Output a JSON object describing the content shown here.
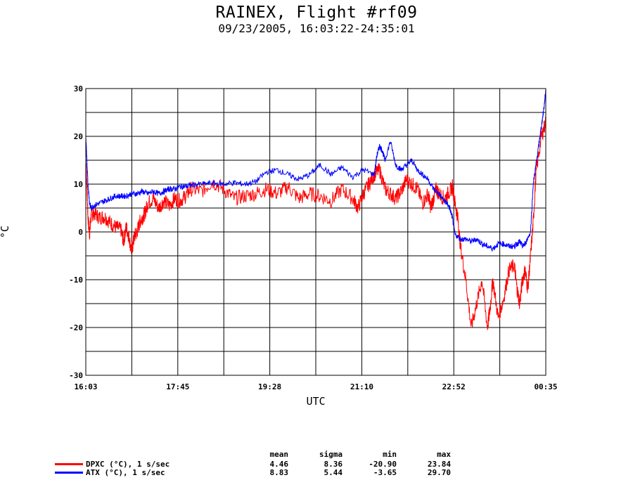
{
  "chart_data": {
    "type": "line",
    "title": "RAINEX, Flight #rf09",
    "subtitle": "09/23/2005, 16:03:22-24:35:01",
    "xlabel": "UTC",
    "ylabel": "°C",
    "x_tick_labels": [
      "16:03",
      "17:45",
      "19:28",
      "21:10",
      "22:52",
      "00:35"
    ],
    "y_ticks": [
      -30,
      -20,
      -10,
      0,
      10,
      20,
      30
    ],
    "ylim": [
      -30,
      30
    ],
    "xlim_hours": [
      16.05,
      24.583
    ],
    "grid": true,
    "series": [
      {
        "name": "DPXC (°C), 1 s/sec",
        "color": "#ff0000",
        "x_hours": [
          16.05,
          16.07,
          16.09,
          16.12,
          16.15,
          16.2,
          16.3,
          16.4,
          16.5,
          16.6,
          16.7,
          16.75,
          16.8,
          16.85,
          16.9,
          16.95,
          17.0,
          17.05,
          17.1,
          17.15,
          17.2,
          17.3,
          17.4,
          17.5,
          17.6,
          17.7,
          17.8,
          17.9,
          18.0,
          18.2,
          18.4,
          18.6,
          18.8,
          19.0,
          19.2,
          19.4,
          19.6,
          19.8,
          20.0,
          20.2,
          20.4,
          20.6,
          20.8,
          21.0,
          21.1,
          21.2,
          21.3,
          21.4,
          21.5,
          21.6,
          21.7,
          21.8,
          21.9,
          22.0,
          22.1,
          22.2,
          22.3,
          22.4,
          22.45,
          22.5,
          22.55,
          22.6,
          22.7,
          22.8,
          22.85,
          22.9,
          22.95,
          23.0,
          23.1,
          23.2,
          23.3,
          23.4,
          23.5,
          23.55,
          23.6,
          23.7,
          23.8,
          23.9,
          24.0,
          24.05,
          24.1,
          24.15,
          24.2,
          24.25,
          24.3,
          24.35,
          24.4,
          24.5,
          24.583
        ],
        "y": [
          15.0,
          10.0,
          3.0,
          -0.5,
          3.5,
          4.0,
          3.0,
          3.2,
          2.0,
          1.0,
          0.5,
          -2.0,
          1.0,
          -1.0,
          -4.0,
          -1.0,
          0.0,
          2.0,
          3.0,
          4.0,
          6.0,
          7.0,
          5.0,
          6.5,
          5.5,
          7.0,
          6.5,
          7.5,
          9.0,
          8.5,
          10.5,
          9.0,
          7.0,
          7.5,
          8.0,
          9.0,
          8.0,
          9.5,
          7.0,
          8.0,
          7.5,
          6.5,
          9.0,
          7.0,
          5.0,
          8.0,
          10.0,
          12.0,
          13.0,
          9.0,
          8.0,
          7.0,
          8.5,
          11.0,
          10.0,
          9.0,
          6.0,
          8.0,
          5.0,
          7.0,
          9.0,
          8.0,
          7.0,
          8.5,
          9.5,
          6.0,
          3.0,
          -3.0,
          -10.0,
          -20.0,
          -15.0,
          -10.0,
          -20.0,
          -16.0,
          -10.0,
          -18.0,
          -14.0,
          -8.0,
          -7.0,
          -12.0,
          -15.0,
          -10.0,
          -8.0,
          -12.0,
          -5.0,
          2.0,
          12.0,
          20.0,
          23.0
        ]
      },
      {
        "name": "ATX (°C), 1 s/sec",
        "color": "#0000ff",
        "x_hours": [
          16.05,
          16.07,
          16.09,
          16.12,
          16.15,
          16.2,
          16.3,
          16.4,
          16.5,
          16.6,
          16.7,
          16.8,
          16.9,
          17.0,
          17.1,
          17.2,
          17.3,
          17.4,
          17.5,
          17.6,
          17.7,
          17.8,
          17.9,
          18.0,
          18.2,
          18.4,
          18.6,
          18.8,
          19.0,
          19.2,
          19.4,
          19.6,
          19.8,
          20.0,
          20.2,
          20.4,
          20.6,
          20.8,
          21.0,
          21.2,
          21.4,
          21.45,
          21.5,
          21.55,
          21.6,
          21.7,
          21.8,
          21.9,
          22.0,
          22.1,
          22.2,
          22.3,
          22.4,
          22.5,
          22.6,
          22.7,
          22.75,
          22.8,
          22.85,
          22.9,
          23.0,
          23.1,
          23.2,
          23.3,
          23.4,
          23.5,
          23.6,
          23.7,
          23.8,
          23.9,
          24.0,
          24.05,
          24.1,
          24.15,
          24.2,
          24.3,
          24.35,
          24.4,
          24.45,
          24.5,
          24.55,
          24.583
        ],
        "y": [
          20.0,
          15.0,
          10.0,
          6.0,
          5.0,
          5.5,
          6.0,
          6.5,
          7.0,
          7.5,
          7.5,
          7.5,
          8.0,
          8.0,
          8.5,
          8.0,
          8.5,
          8.0,
          8.5,
          9.0,
          9.0,
          9.5,
          9.5,
          9.8,
          10.0,
          10.2,
          10.0,
          10.3,
          10.0,
          10.5,
          12.5,
          13.0,
          12.0,
          11.0,
          12.0,
          14.0,
          12.0,
          13.5,
          11.5,
          13.0,
          12.0,
          16.0,
          18.0,
          17.0,
          15.0,
          19.0,
          14.0,
          13.0,
          14.0,
          15.0,
          13.0,
          12.0,
          11.0,
          9.0,
          8.0,
          6.5,
          6.0,
          5.0,
          3.0,
          -0.5,
          -1.5,
          -1.5,
          -2.0,
          -1.5,
          -2.5,
          -3.0,
          -3.5,
          -2.5,
          -2.5,
          -3.0,
          -3.0,
          -2.5,
          -2.0,
          -3.0,
          -2.5,
          0.0,
          10.0,
          14.0,
          18.0,
          22.0,
          26.0,
          29.7
        ]
      }
    ],
    "stats": {
      "headers": [
        "mean",
        "sigma",
        "min",
        "max"
      ],
      "rows": [
        {
          "label": "DPXC (°C), 1 s/sec",
          "mean": "4.46",
          "sigma": "8.36",
          "min": "-20.90",
          "max": "23.84"
        },
        {
          "label": "ATX (°C), 1 s/sec",
          "mean": "8.83",
          "sigma": "5.44",
          "min": "-3.65",
          "max": "29.70"
        }
      ]
    }
  }
}
